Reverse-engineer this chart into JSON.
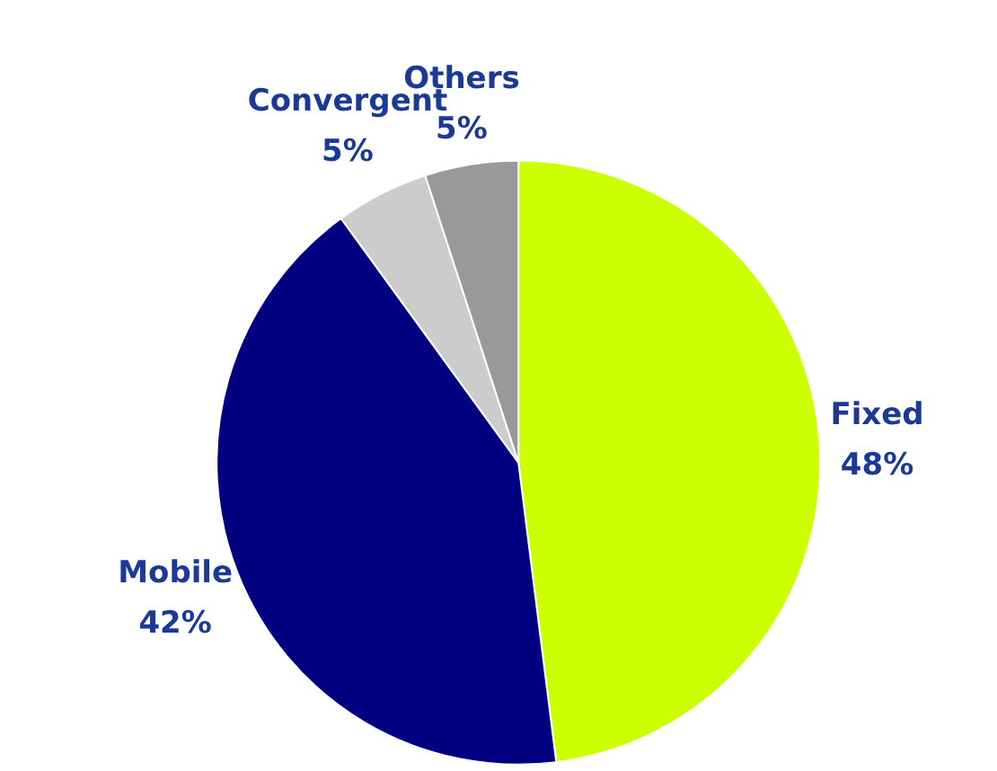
{
  "chart_data": {
    "type": "pie",
    "categories": [
      "Fixed",
      "Mobile",
      "Convergent",
      "Others"
    ],
    "values": [
      48,
      42,
      5,
      5
    ],
    "value_labels": [
      "48%",
      "42%",
      "5%",
      "5%"
    ],
    "colors": [
      "#ccff00",
      "#000080",
      "#cccccc",
      "#999999"
    ]
  }
}
